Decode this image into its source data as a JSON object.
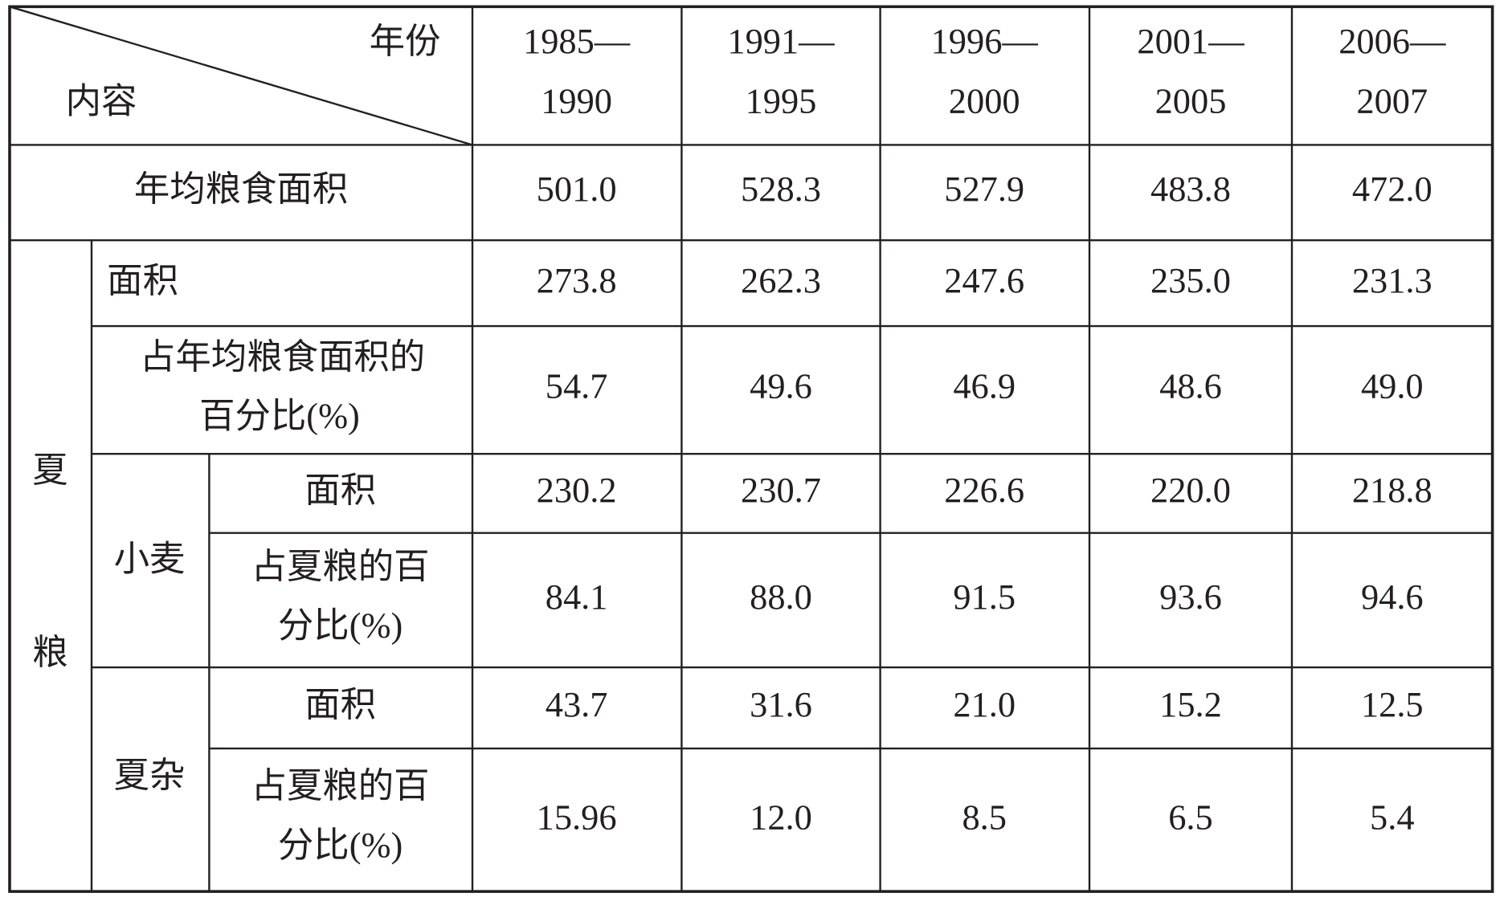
{
  "table": {
    "corner": {
      "top": "年份",
      "bottom": "内容"
    },
    "columns": [
      [
        "1985—",
        "1990"
      ],
      [
        "1991—",
        "1995"
      ],
      [
        "1996—",
        "2000"
      ],
      [
        "2001—",
        "2005"
      ],
      [
        "2006—",
        "2007"
      ]
    ],
    "group": [
      "夏",
      "粮"
    ],
    "subgroups": [
      "小麦",
      "夏杂"
    ],
    "rows": [
      {
        "label": [
          "年均粮食面积"
        ],
        "values": [
          "501.0",
          "528.3",
          "527.9",
          "483.8",
          "472.0"
        ]
      },
      {
        "label": [
          "面积"
        ],
        "values": [
          "273.8",
          "262.3",
          "247.6",
          "235.0",
          "231.3"
        ]
      },
      {
        "label": [
          "占年均粮食面积的",
          "百分比(%)"
        ],
        "values": [
          "54.7",
          "49.6",
          "46.9",
          "48.6",
          "49.0"
        ]
      },
      {
        "label": [
          "面积"
        ],
        "values": [
          "230.2",
          "230.7",
          "226.6",
          "220.0",
          "218.8"
        ]
      },
      {
        "label": [
          "占夏粮的百",
          "分比(%)"
        ],
        "values": [
          "84.1",
          "88.0",
          "91.5",
          "93.6",
          "94.6"
        ]
      },
      {
        "label": [
          "面积"
        ],
        "values": [
          "43.7",
          "31.6",
          "21.0",
          "15.2",
          "12.5"
        ]
      },
      {
        "label": [
          "占夏粮的百",
          "分比(%)"
        ],
        "values": [
          "15.96",
          "12.0",
          "8.5",
          "6.5",
          "5.4"
        ]
      }
    ]
  }
}
